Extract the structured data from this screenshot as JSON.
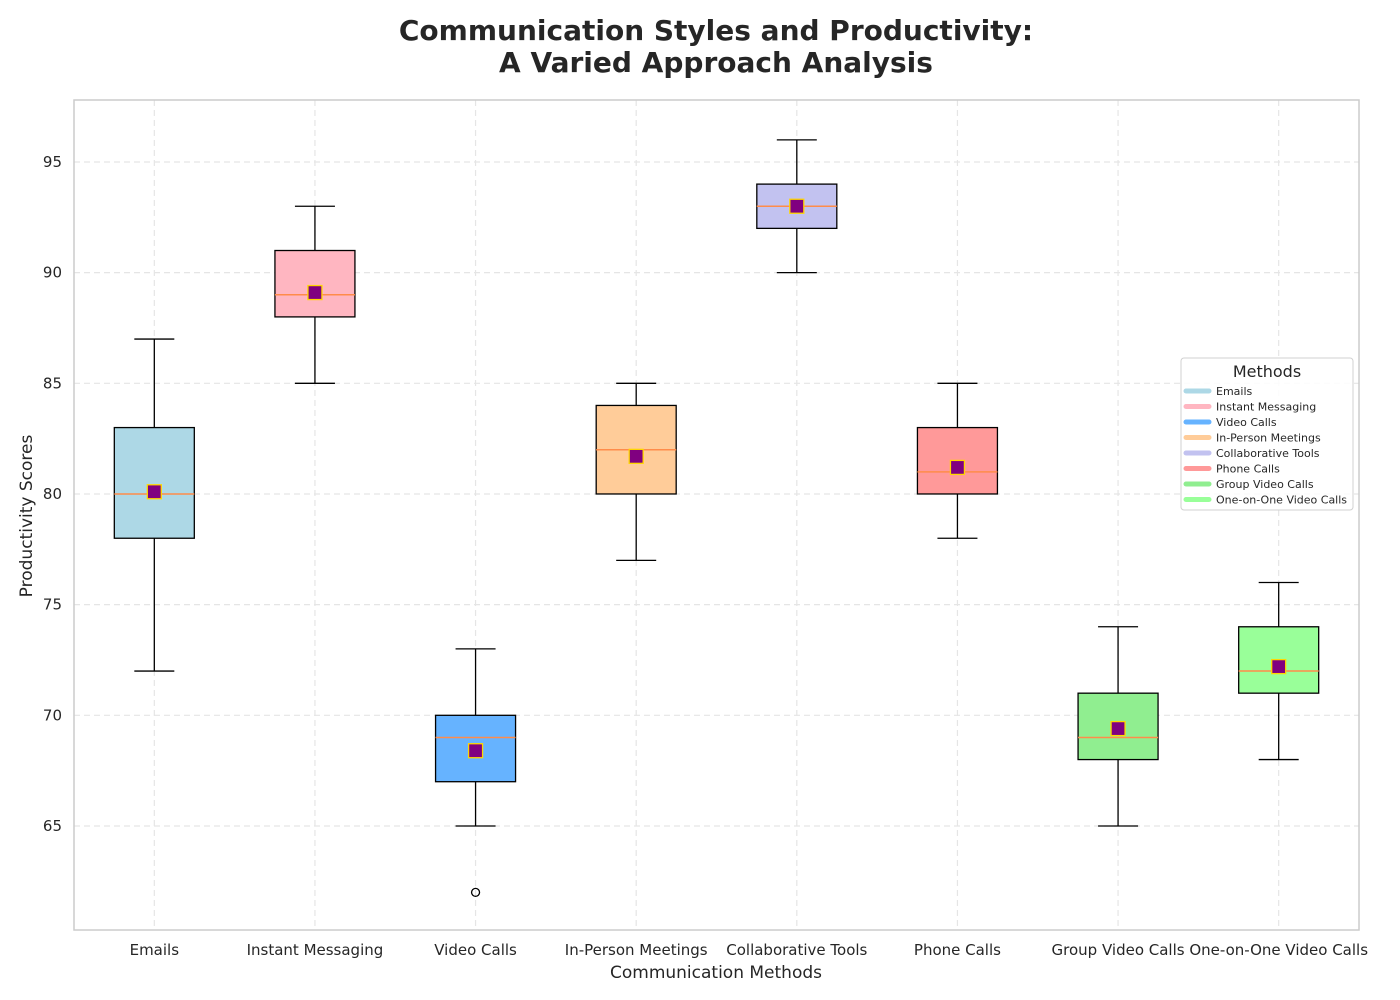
{
  "chart_data": {
    "type": "box",
    "title_lines": [
      "Communication Styles and Productivity:",
      "A Varied Approach Analysis"
    ],
    "xlabel": "Communication Methods",
    "ylabel": "Productivity Scores",
    "ylim": [
      60.3,
      97.8
    ],
    "yticks": [
      65,
      70,
      75,
      80,
      85,
      90,
      95
    ],
    "grid": true,
    "legend": {
      "title": "Methods",
      "placement": "center-right"
    },
    "categories": [
      "Emails",
      "Instant Messaging",
      "Video Calls",
      "In-Person Meetings",
      "Collaborative Tools",
      "Phone Calls",
      "Group Video Calls",
      "One-on-One Video Calls"
    ],
    "colors": [
      "#add8e6",
      "#ffb6c1",
      "#66b3ff",
      "#ffcc99",
      "#c2c2f0",
      "#ff9999",
      "#90ee90",
      "#99ff99"
    ],
    "boxes": [
      {
        "name": "Emails",
        "whisker_low": 72,
        "q1": 78,
        "median": 80,
        "q3": 83,
        "whisker_high": 87,
        "mean": 80.1,
        "outliers": []
      },
      {
        "name": "Instant Messaging",
        "whisker_low": 85,
        "q1": 88,
        "median": 89,
        "q3": 91,
        "whisker_high": 93,
        "mean": 89.1,
        "outliers": []
      },
      {
        "name": "Video Calls",
        "whisker_low": 65,
        "q1": 67,
        "median": 69,
        "q3": 70,
        "whisker_high": 73,
        "mean": 68.4,
        "outliers": [
          62
        ]
      },
      {
        "name": "In-Person Meetings",
        "whisker_low": 77,
        "q1": 80,
        "median": 82,
        "q3": 84,
        "whisker_high": 85,
        "mean": 81.7,
        "outliers": []
      },
      {
        "name": "Collaborative Tools",
        "whisker_low": 90,
        "q1": 92,
        "median": 93,
        "q3": 94,
        "whisker_high": 96,
        "mean": 93.0,
        "outliers": []
      },
      {
        "name": "Phone Calls",
        "whisker_low": 78,
        "q1": 80,
        "median": 81,
        "q3": 83,
        "whisker_high": 85,
        "mean": 81.2,
        "outliers": []
      },
      {
        "name": "Group Video Calls",
        "whisker_low": 65,
        "q1": 68,
        "median": 69,
        "q3": 71,
        "whisker_high": 74,
        "mean": 69.4,
        "outliers": []
      },
      {
        "name": "One-on-One Video Calls",
        "whisker_low": 68,
        "q1": 71,
        "median": 72,
        "q3": 74,
        "whisker_high": 76,
        "mean": 72.2,
        "outliers": []
      }
    ],
    "mean_marker_color": "#800080",
    "mean_marker_edge": "#ffd700",
    "median_color": "#ff8c4a"
  }
}
